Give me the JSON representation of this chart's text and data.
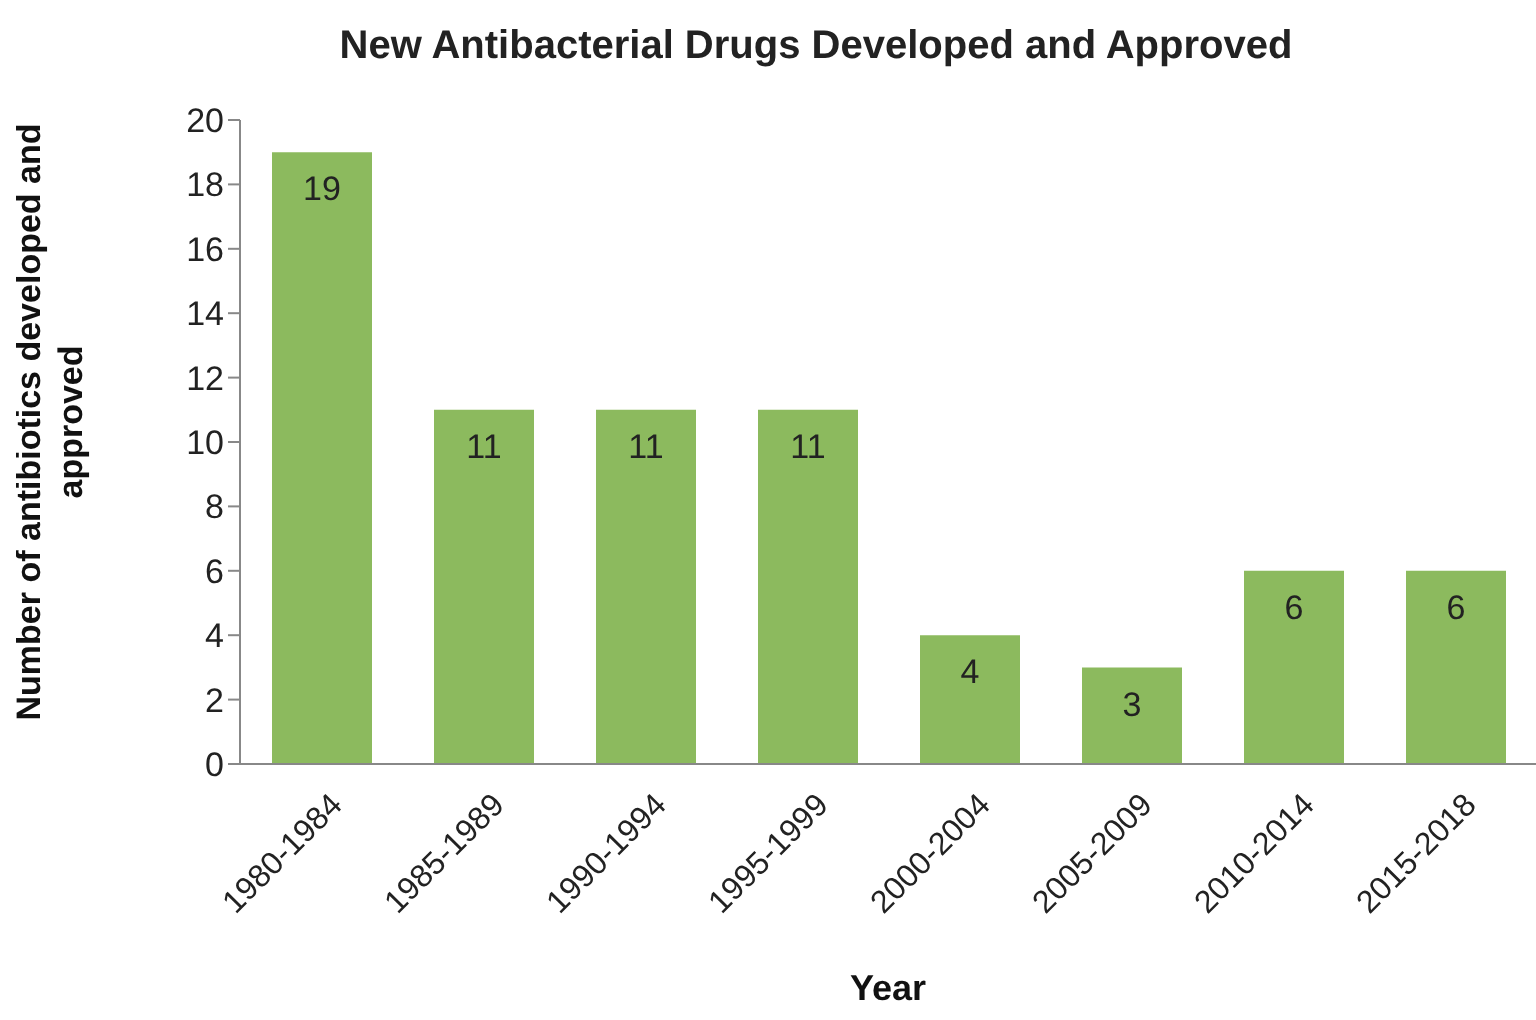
{
  "chart_data": {
    "type": "bar",
    "title": "New Antibacterial Drugs Developed and Approved",
    "xlabel": "Year",
    "ylabel": "Number of antibiotics developed and approved",
    "categories": [
      "1980-1984",
      "1985-1989",
      "1990-1994",
      "1995-1999",
      "2000-2004",
      "2005-2009",
      "2010-2014",
      "2015-2018"
    ],
    "values": [
      19,
      11,
      11,
      11,
      4,
      3,
      6,
      6
    ],
    "color": "#8cba5e",
    "ylim": [
      0,
      20
    ],
    "yticks": [
      0,
      2,
      4,
      6,
      8,
      10,
      12,
      14,
      16,
      18,
      20
    ],
    "data_labels": true
  }
}
